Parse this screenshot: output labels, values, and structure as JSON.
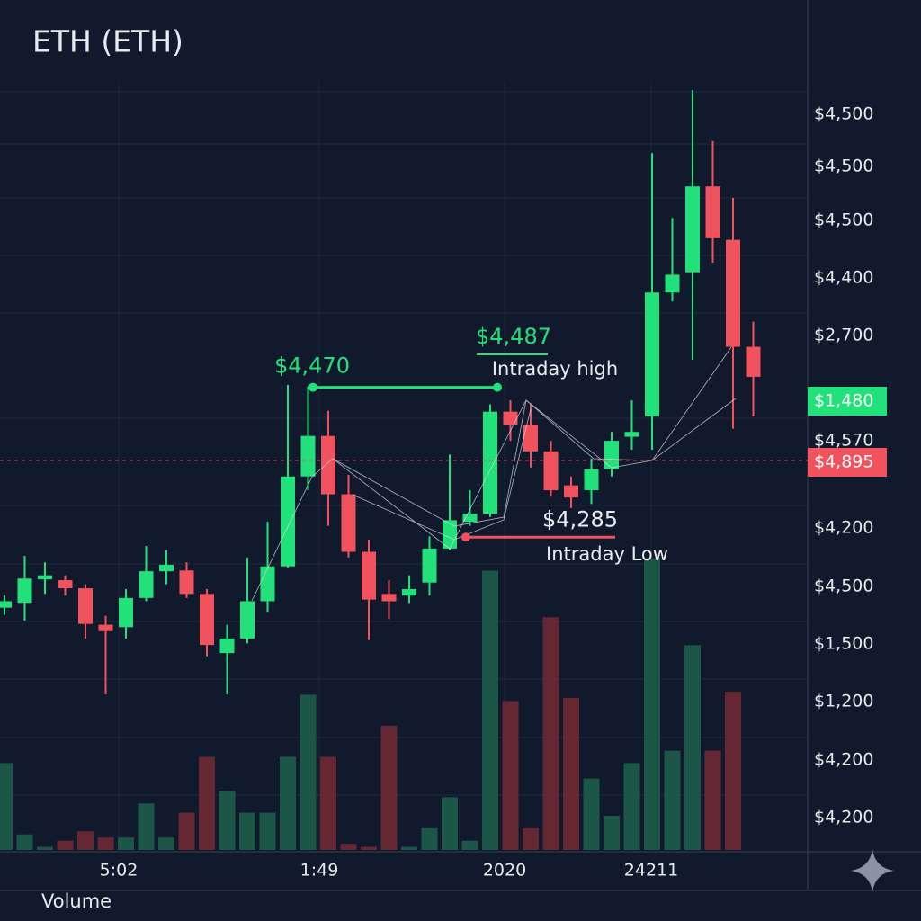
{
  "chart_data": {
    "type": "candlestick",
    "title": "ETH (ETH)",
    "ylim": [
      4050,
      4850
    ],
    "open": [
      4198,
      4204,
      4233,
      4232,
      4222,
      4177,
      4174,
      4210,
      4243,
      4244,
      4215,
      4142,
      4160,
      4206,
      4249,
      4360,
      4410,
      4338,
      4267,
      4215,
      4213,
      4229,
      4271,
      4304,
      4314,
      4440,
      4424,
      4391,
      4349,
      4343,
      4369,
      4409,
      4434,
      4587,
      4612,
      4718,
      4652,
      4520
    ],
    "high": [
      4213,
      4262,
      4254,
      4238,
      4227,
      4188,
      4221,
      4274,
      4269,
      4254,
      4221,
      4177,
      4260,
      4304,
      4473,
      4471,
      4441,
      4362,
      4282,
      4232,
      4238,
      4286,
      4387,
      4343,
      4449,
      4454,
      4449,
      4404,
      4360,
      4382,
      4415,
      4454,
      4759,
      4679,
      4837,
      4774,
      4704,
      4551
    ],
    "low": [
      4189,
      4182,
      4215,
      4213,
      4160,
      4091,
      4160,
      4206,
      4227,
      4210,
      4138,
      4091,
      4154,
      4193,
      4247,
      4343,
      4299,
      4260,
      4158,
      4184,
      4204,
      4213,
      4269,
      4299,
      4310,
      4404,
      4371,
      4335,
      4321,
      4326,
      4360,
      4393,
      4393,
      4576,
      4504,
      4624,
      4419,
      4434
    ],
    "close": [
      4206,
      4234,
      4238,
      4222,
      4178,
      4169,
      4210,
      4243,
      4251,
      4215,
      4152,
      4160,
      4206,
      4249,
      4360,
      4410,
      4338,
      4267,
      4208,
      4206,
      4221,
      4271,
      4306,
      4314,
      4440,
      4424,
      4391,
      4343,
      4334,
      4369,
      4404,
      4415,
      4587,
      4609,
      4718,
      4654,
      4520,
      4483
    ],
    "volume": [
      28,
      5,
      1,
      3,
      6,
      4,
      4,
      15,
      4,
      12,
      30,
      19,
      12,
      12,
      30,
      50,
      30,
      2,
      1,
      40,
      1,
      7,
      17,
      3,
      90,
      48,
      7,
      75,
      49,
      23,
      11,
      28,
      94,
      32,
      66,
      32,
      51,
      0
    ],
    "vlim": [
      0,
      100
    ],
    "up_color": "#22e07a",
    "down_color": "#f0525e",
    "y_axis_labels": [
      "$4,500",
      "$4,500",
      "$4,500",
      "$4,400",
      "$2,700",
      "$4,570",
      "$4,200",
      "$4,500",
      "$1,500",
      "$1,200",
      "$4,200",
      "$4,200"
    ],
    "x_labels": [
      "5:02",
      "1:49",
      "2020",
      "24211"
    ],
    "volume_label": "Volume",
    "price_badges": [
      {
        "label": "$1,480",
        "color": "#22e07a"
      },
      {
        "label": "$4,895",
        "color": "#f0525e"
      }
    ],
    "high_marker": {
      "value": 4470,
      "label": "$4,470"
    },
    "low_marker": {
      "value": 4285,
      "label": "$4,285"
    },
    "annotations": [
      "$4,487",
      "Intraday high",
      "Intraday Low"
    ]
  }
}
